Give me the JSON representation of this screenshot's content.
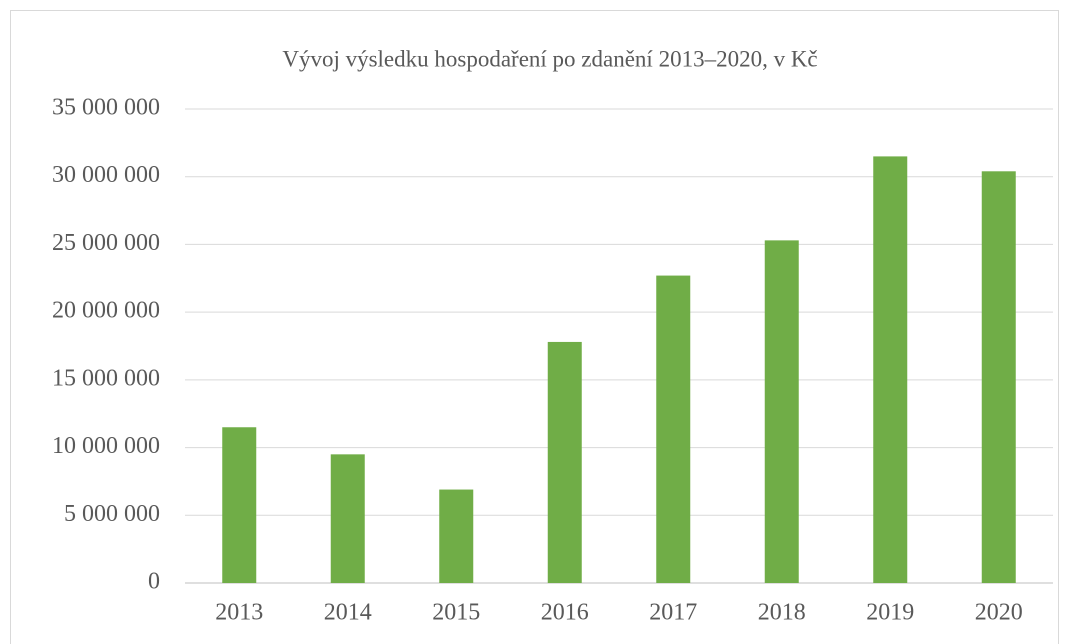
{
  "chart_data": {
    "type": "bar",
    "title": "Vývoj výsledku hospodaření po zdanění 2013–2020, v Kč",
    "categories": [
      "2013",
      "2014",
      "2015",
      "2016",
      "2017",
      "2018",
      "2019",
      "2020"
    ],
    "values": [
      11500000,
      9500000,
      6900000,
      17800000,
      22700000,
      25300000,
      31500000,
      30400000
    ],
    "color": "#70ad47",
    "ylim": [
      0,
      35000000
    ],
    "yticks": [
      0,
      {
        "value": 5000000,
        "label": "5 000 000"
      },
      {
        "value": 10000000,
        "label": "10 000 000"
      },
      {
        "value": 15000000,
        "label": "15 000 000"
      },
      {
        "value": 20000000,
        "label": "20 000 000"
      },
      {
        "value": 25000000,
        "label": "25 000 000"
      },
      {
        "value": 30000000,
        "label": "30 000 000"
      },
      {
        "value": 35000000,
        "label": "35 000 000"
      }
    ],
    "grid": true
  }
}
